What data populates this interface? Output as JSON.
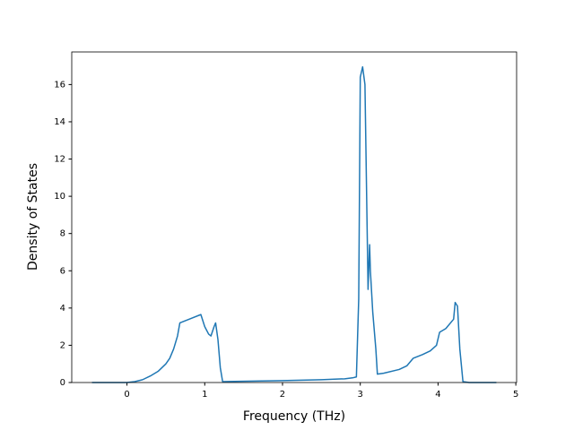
{
  "chart_data": {
    "type": "line",
    "xlabel": "Frequency (THz)",
    "ylabel": "Density of States",
    "x": [
      -0.45,
      0,
      0.1,
      0.2,
      0.3,
      0.4,
      0.5,
      0.55,
      0.6,
      0.65,
      0.68,
      0.8,
      0.95,
      1.0,
      1.05,
      1.08,
      1.12,
      1.14,
      1.17,
      1.2,
      1.23,
      2.0,
      2.5,
      2.8,
      2.9,
      2.95,
      2.98,
      3.0,
      3.03,
      3.06,
      3.1,
      3.12,
      3.13,
      3.16,
      3.2,
      3.22,
      3.3,
      3.5,
      3.6,
      3.68,
      3.8,
      3.9,
      3.98,
      4.02,
      4.1,
      4.2,
      4.22,
      4.25,
      4.28,
      4.32,
      4.4,
      4.75
    ],
    "values": [
      0,
      0,
      0.05,
      0.15,
      0.35,
      0.6,
      1.0,
      1.3,
      1.8,
      2.5,
      3.2,
      3.4,
      3.65,
      3.0,
      2.6,
      2.5,
      3.0,
      3.2,
      2.3,
      0.8,
      0.05,
      0.1,
      0.15,
      0.2,
      0.25,
      0.3,
      4.5,
      16.4,
      16.95,
      16.0,
      5.0,
      7.4,
      6.0,
      3.8,
      1.8,
      0.45,
      0.5,
      0.7,
      0.9,
      1.3,
      1.5,
      1.7,
      2.0,
      2.7,
      2.9,
      3.4,
      4.3,
      4.1,
      1.8,
      0.05,
      0,
      0
    ],
    "color": "#1f77b4",
    "xlim": [
      -0.71,
      5.01
    ],
    "xticks": [
      0,
      1,
      2,
      3,
      4,
      5
    ],
    "ylim": [
      0,
      17.75
    ],
    "yticks": [
      0,
      2,
      4,
      6,
      8,
      10,
      12,
      14,
      16
    ],
    "grid": false
  }
}
